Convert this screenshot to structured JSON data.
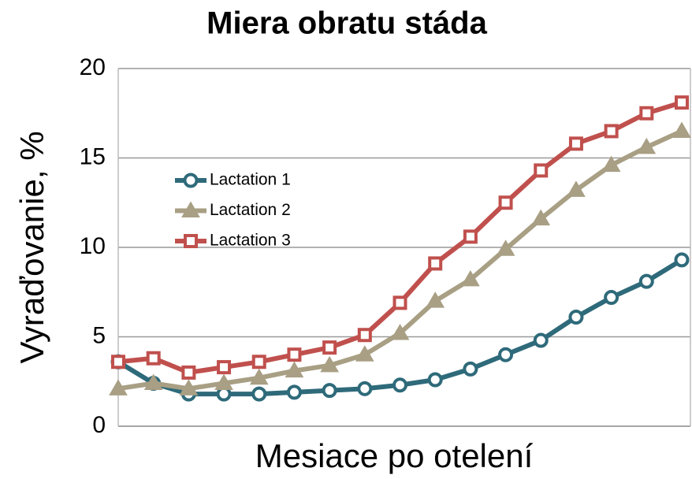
{
  "chart_data": {
    "type": "line",
    "title": "Miera obratu stáda",
    "x_label": "Mesiace po otelení",
    "y_label": "Vyraďovanie, %",
    "categories": [
      null,
      null,
      null,
      null,
      null,
      null,
      null,
      null,
      null,
      null,
      null,
      null,
      null,
      null,
      null,
      null,
      null
    ],
    "series": [
      {
        "name": "Lactation 1",
        "color": "#2e6a7a",
        "marker": "circle",
        "values": [
          3.6,
          2.4,
          1.8,
          1.8,
          1.8,
          1.9,
          2.0,
          2.1,
          2.3,
          2.6,
          3.2,
          4.0,
          4.8,
          6.1,
          7.2,
          8.1,
          9.3
        ]
      },
      {
        "name": "Lactation 2",
        "color": "#a89f84",
        "marker": "triangle",
        "values": [
          2.1,
          2.4,
          2.1,
          2.4,
          2.7,
          3.1,
          3.4,
          4.0,
          5.2,
          7.0,
          8.2,
          9.9,
          11.6,
          13.2,
          14.6,
          15.6,
          16.5
        ]
      },
      {
        "name": "Lactation 3",
        "color": "#c0504d",
        "marker": "square",
        "values": [
          3.6,
          3.8,
          3.0,
          3.3,
          3.6,
          4.0,
          4.4,
          5.1,
          6.9,
          9.1,
          10.6,
          12.5,
          14.3,
          15.8,
          16.5,
          17.5,
          18.1
        ]
      }
    ],
    "ylim": [
      0,
      20
    ],
    "yticks": [
      0,
      5,
      10,
      15,
      20
    ],
    "grid": true
  }
}
